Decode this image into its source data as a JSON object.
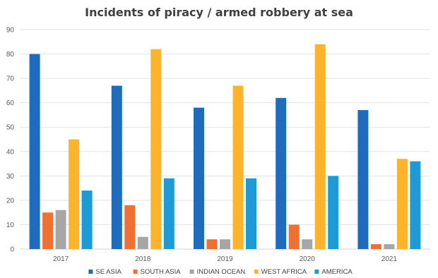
{
  "chart_data": {
    "type": "bar",
    "title": "Incidents of piracy / armed robbery at sea",
    "categories": [
      "2017",
      "2018",
      "2019",
      "2020",
      "2021"
    ],
    "series": [
      {
        "name": "SE ASIA",
        "color": "#1f6cbf",
        "values": [
          80,
          67,
          58,
          62,
          57
        ]
      },
      {
        "name": "SOUTH ASIA",
        "color": "#ef7032",
        "values": [
          15,
          18,
          4,
          10,
          2
        ]
      },
      {
        "name": "INDIAN OCEAN",
        "color": "#a6a6a6",
        "values": [
          16,
          5,
          4,
          4,
          2
        ]
      },
      {
        "name": "WEST AFRICA",
        "color": "#fdb32a",
        "values": [
          45,
          82,
          67,
          84,
          37
        ]
      },
      {
        "name": "AMERICA",
        "color": "#1e9ad6",
        "values": [
          24,
          29,
          29,
          30,
          36
        ]
      }
    ],
    "ylim": [
      0,
      90
    ],
    "yticks": [
      0,
      10,
      20,
      30,
      40,
      50,
      60,
      70,
      80,
      90
    ],
    "grid": true,
    "legend_position": "bottom"
  }
}
